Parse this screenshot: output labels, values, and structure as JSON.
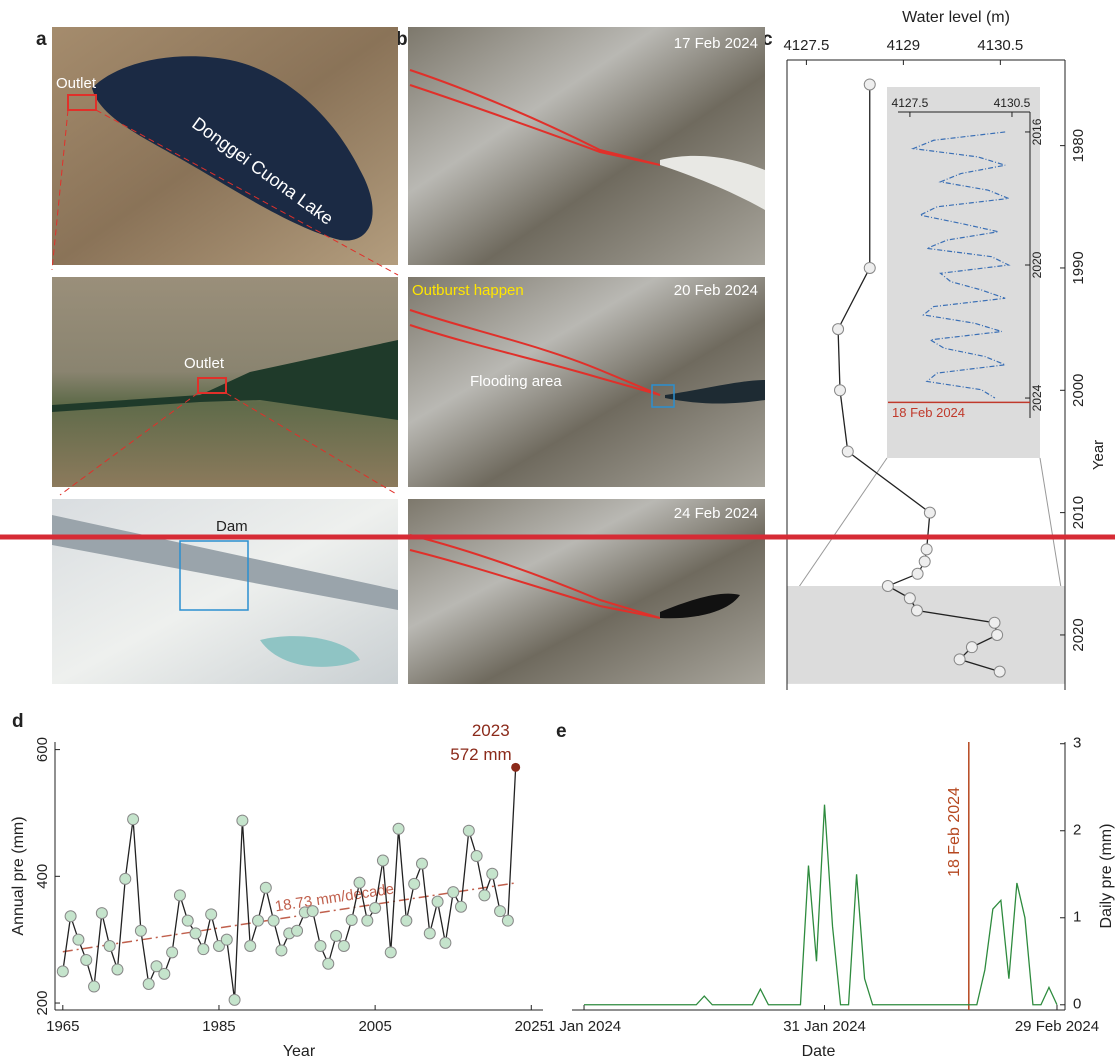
{
  "panel_labels": [
    "a",
    "b",
    "c",
    "d",
    "e"
  ],
  "images": {
    "a": [
      "Outlet",
      "Donggei Cuona Lake",
      "Outlet",
      "Dam"
    ],
    "b": [
      "17 Feb 2024",
      "20 Feb 2024",
      "Outburst happen",
      "Flooding area",
      "24 Feb 2024"
    ]
  },
  "chart_data": [
    {
      "type": "line",
      "orientation": "vertical",
      "x_label": "Year",
      "y_label": "Water level (m)",
      "x": [
        1975,
        1990,
        1995,
        2000,
        2005,
        2010,
        2013,
        2014,
        2015,
        2016,
        2017,
        2018,
        2019,
        2020,
        2021,
        2022,
        2023
      ],
      "series": [
        {
          "color": "#222222",
          "marker_color": "#eeeeee",
          "values": [
            4128.48,
            4128.48,
            4127.99,
            4128.02,
            4128.14,
            4129.41,
            4129.36,
            4129.33,
            4129.22,
            4128.76,
            4129.1,
            4129.21,
            4130.41,
            4130.45,
            4130.06,
            4129.87,
            4130.49
          ]
        }
      ],
      "xlim": [
        1973,
        2024.5
      ],
      "xticks": [
        1980,
        1990,
        2000,
        2010,
        2020
      ],
      "ylim": [
        4127.2,
        4131.5
      ],
      "yticks": [
        4127.5,
        4129,
        4130.5
      ],
      "shade": [
        2016,
        2024
      ],
      "shade_color": "#dcdcdc"
    },
    {
      "type": "line",
      "orientation": "vertical",
      "x": [
        2016,
        2016.25,
        2016.5,
        2016.75,
        2017,
        2017.25,
        2017.5,
        2017.75,
        2018,
        2018.25,
        2018.5,
        2018.75,
        2019,
        2019.25,
        2019.5,
        2019.75,
        2020,
        2020.25,
        2020.5,
        2020.75,
        2021,
        2021.25,
        2021.5,
        2021.75,
        2022,
        2022.25,
        2022.5,
        2022.75,
        2023,
        2023.25,
        2023.5,
        2023.75,
        2024
      ],
      "series": [
        {
          "color": "#3a6fb5",
          "dash": true,
          "values": [
            4130.3,
            4128.2,
            4127.6,
            4129.5,
            4130.3,
            4129.0,
            4128.4,
            4129.8,
            4130.4,
            4128.3,
            4127.8,
            4129.0,
            4130.1,
            4128.6,
            4128.0,
            4129.9,
            4130.4,
            4128.4,
            4128.7,
            4129.6,
            4130.3,
            4128.2,
            4127.9,
            4129.4,
            4130.2,
            4128.1,
            4128.5,
            4129.7,
            4130.3,
            4128.3,
            4128.0,
            4129.6,
            4130.0
          ]
        }
      ],
      "xlim": [
        2015.4,
        2024.6
      ],
      "xticks": [
        2016,
        2020,
        2024
      ],
      "ylim": [
        4127.15,
        4131.03
      ],
      "yticks": [
        4127.5,
        4130.5
      ],
      "events": [
        {
          "x": 2024.13,
          "label": "18 Feb 2024",
          "color": "#c0392b"
        }
      ]
    },
    {
      "type": "line",
      "x_label": "Year",
      "y_label": "Annual pre (mm)",
      "x": [
        1965,
        1966,
        1967,
        1968,
        1969,
        1970,
        1971,
        1972,
        1973,
        1974,
        1975,
        1976,
        1977,
        1978,
        1979,
        1980,
        1981,
        1982,
        1983,
        1984,
        1985,
        1986,
        1987,
        1988,
        1989,
        1990,
        1991,
        1992,
        1993,
        1994,
        1995,
        1996,
        1997,
        1998,
        1999,
        2000,
        2001,
        2002,
        2003,
        2004,
        2005,
        2006,
        2007,
        2008,
        2009,
        2010,
        2011,
        2012,
        2013,
        2014,
        2015,
        2016,
        2017,
        2018,
        2019,
        2020,
        2021,
        2022,
        2023
      ],
      "series": [
        {
          "color": "#222222",
          "marker_color": "#c5e4cc",
          "label_color": "#8b2a1a",
          "values": [
            250,
            337,
            300,
            268,
            226,
            342,
            290,
            253,
            396,
            490,
            314,
            230,
            258,
            246,
            280,
            370,
            330,
            310,
            285,
            340,
            290,
            300,
            205,
            488,
            290,
            330,
            382,
            330,
            283,
            310,
            314,
            343,
            345,
            290,
            262,
            306,
            290,
            331,
            390,
            330,
            350,
            425,
            280,
            475,
            330,
            388,
            420,
            310,
            360,
            295,
            375,
            352,
            472,
            432,
            370,
            404,
            345,
            330,
            572
          ],
          "value_labels": [
            null,
            null,
            null,
            null,
            null,
            null,
            null,
            null,
            null,
            null,
            null,
            null,
            null,
            null,
            null,
            null,
            null,
            null,
            null,
            null,
            null,
            null,
            null,
            null,
            null,
            null,
            null,
            null,
            null,
            null,
            null,
            null,
            null,
            null,
            null,
            null,
            null,
            null,
            null,
            null,
            null,
            null,
            null,
            null,
            null,
            null,
            null,
            null,
            null,
            null,
            null,
            null,
            null,
            null,
            null,
            null,
            null,
            null,
            "572 mm"
          ]
        }
      ],
      "trend": {
        "x": [
          1965,
          2023
        ],
        "values": [
          281,
          389.6
        ],
        "color": "#c0604d",
        "label": "18.73 mm/decade"
      },
      "xlim": [
        1964,
        2026.5
      ],
      "xticks": [
        1965,
        1985,
        2005,
        2025
      ],
      "ylim": [
        189,
        612
      ],
      "yticks": [
        200,
        400,
        600
      ]
    },
    {
      "type": "line",
      "x_label": "Date",
      "y_label": "Daily pre (mm)",
      "x": [
        0,
        1,
        2,
        3,
        4,
        5,
        6,
        7,
        8,
        9,
        10,
        11,
        12,
        13,
        14,
        15,
        16,
        17,
        18,
        19,
        20,
        21,
        22,
        23,
        24,
        25,
        26,
        27,
        28,
        29,
        30,
        31,
        32,
        33,
        34,
        35,
        36,
        37,
        38,
        39,
        40,
        41,
        42,
        43,
        44,
        45,
        46,
        47,
        48,
        49,
        50,
        51,
        52,
        53,
        54,
        55,
        56,
        57,
        58,
        59
      ],
      "series": [
        {
          "color": "#2e8b3e",
          "values": [
            0,
            0,
            0,
            0,
            0,
            0,
            0,
            0,
            0,
            0,
            0,
            0,
            0,
            0,
            0,
            0.1,
            0,
            0,
            0,
            0,
            0,
            0,
            0.18,
            0,
            0,
            0,
            0,
            0,
            1.6,
            0.5,
            2.3,
            0.9,
            0,
            0,
            1.5,
            0.3,
            0,
            0,
            0,
            0,
            0,
            0,
            0,
            0,
            0,
            0,
            0,
            0,
            0,
            0,
            0.4,
            1.1,
            1.2,
            0.3,
            1.4,
            1.0,
            0,
            0,
            0.2,
            0
          ]
        }
      ],
      "xlim": [
        -1.5,
        60
      ],
      "xticks": [
        {
          "value": 0,
          "label": "1 Jan 2024"
        },
        {
          "value": 30,
          "label": "31 Jan 2024"
        },
        {
          "value": 59,
          "label": "29 Feb 2024"
        }
      ],
      "ylim": [
        -0.06,
        3.02
      ],
      "yticks": [
        0,
        1,
        2,
        3
      ],
      "events": [
        {
          "x": 48,
          "label": "18 Feb 2024",
          "color": "#b5471f"
        }
      ]
    }
  ]
}
